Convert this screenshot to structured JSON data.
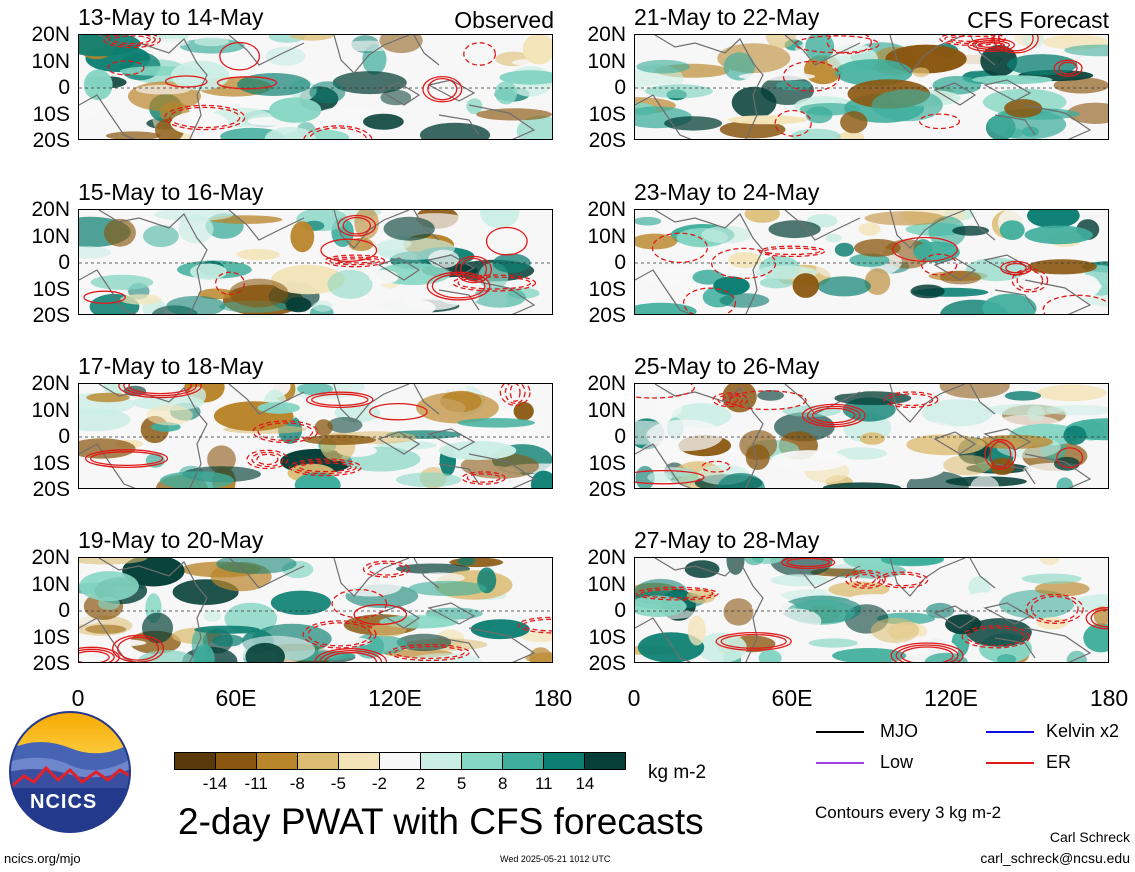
{
  "header": {
    "left_tag": "Observed",
    "right_tag": "CFS Forecast"
  },
  "panels": [
    {
      "title": "13-May to 14-May",
      "side": "observed"
    },
    {
      "title": "15-May to 16-May",
      "side": "observed"
    },
    {
      "title": "17-May to 18-May",
      "side": "observed"
    },
    {
      "title": "19-May to 20-May",
      "side": "observed"
    },
    {
      "title": "21-May to 22-May",
      "side": "forecast"
    },
    {
      "title": "23-May to 24-May",
      "side": "forecast"
    },
    {
      "title": "25-May to 26-May",
      "side": "forecast"
    },
    {
      "title": "27-May to 28-May",
      "side": "forecast"
    }
  ],
  "axes": {
    "y_ticks": [
      "20N",
      "10N",
      "0",
      "10S",
      "20S"
    ],
    "x_ticks": [
      "0",
      "60E",
      "120E",
      "180"
    ]
  },
  "legend": {
    "items": [
      {
        "label": "MJO",
        "color": "#000000"
      },
      {
        "label": "Kelvin x2",
        "color": "#1010e0"
      },
      {
        "label": "Low",
        "color": "#a040e0"
      },
      {
        "label": "ER",
        "color": "#e01a1a"
      }
    ],
    "contour_note": "Contours every 3 kg m-2"
  },
  "colorbar": {
    "labels": [
      "-14",
      "-11",
      "-8",
      "-5",
      "-2",
      "2",
      "5",
      "8",
      "11",
      "14"
    ],
    "colors": [
      "#5a3a0a",
      "#8a5710",
      "#b9852a",
      "#dcbc72",
      "#f3e4b8",
      "#f7f7f7",
      "#cbeee4",
      "#86d6c4",
      "#3fae9c",
      "#0c7f72",
      "#053f37"
    ],
    "unit": "kg m-2"
  },
  "title": "2-day PWAT with CFS forecasts",
  "logo": {
    "text": "NCICS"
  },
  "footer": {
    "url": "ncics.org/mjo",
    "timestamp": "Wed 2025-05-21 1012 UTC",
    "author": "Carl Schreck",
    "email": "carl_schreck@ncsu.edu"
  },
  "chart_data": {
    "type": "heatmap",
    "title": "2-day PWAT with CFS forecasts",
    "variable": "precipitable water anomaly",
    "unit": "kg m-2",
    "x_range": [
      "0",
      "180"
    ],
    "y_range": [
      "20S",
      "20N"
    ],
    "x_ticks": [
      "0",
      "60E",
      "120E",
      "180"
    ],
    "y_ticks": [
      "20N",
      "10N",
      "0",
      "10S",
      "20S"
    ],
    "color_levels": [
      -14,
      -11,
      -8,
      -5,
      -2,
      2,
      5,
      8,
      11,
      14
    ],
    "panels": [
      "13-May to 14-May",
      "15-May to 16-May",
      "17-May to 18-May",
      "19-May to 20-May",
      "21-May to 22-May",
      "23-May to 24-May",
      "25-May to 26-May",
      "27-May to 28-May"
    ],
    "contour_interval": 3,
    "contour_series": [
      "MJO",
      "Kelvin x2",
      "Low",
      "ER"
    ]
  }
}
